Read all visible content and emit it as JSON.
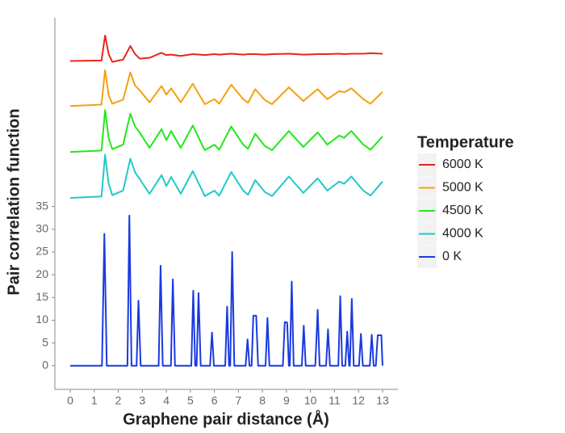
{
  "chart_data": {
    "type": "line",
    "xlabel": "Graphene pair distance (Å)",
    "ylabel": "Pair correlation function",
    "legend_title": "Temperature",
    "legend_position": "right",
    "xlim": [
      -0.64,
      13.64
    ],
    "ylim": [
      -5.2,
      76.5
    ],
    "xticks": [
      0,
      1,
      2,
      3,
      4,
      5,
      6,
      7,
      8,
      9,
      10,
      11,
      12,
      13
    ],
    "yticks": [
      0,
      5,
      10,
      15,
      20,
      25,
      30,
      35
    ],
    "series": [
      {
        "name": "6000 K",
        "color": "#e8261a",
        "x": [
          0,
          1.3,
          1.45,
          1.6,
          1.75,
          2.2,
          2.5,
          2.7,
          2.9,
          3.3,
          3.8,
          4.0,
          4.2,
          4.6,
          5.1,
          5.6,
          6.0,
          6.2,
          6.7,
          7.2,
          7.4,
          7.7,
          8.1,
          8.4,
          9.1,
          9.7,
          10.3,
          10.7,
          11.2,
          11.4,
          11.7,
          12.2,
          12.5,
          13
        ],
        "values": [
          67,
          67.1,
          72.6,
          68.5,
          66.8,
          67.3,
          70.3,
          68.5,
          67.5,
          67.7,
          68.8,
          68.3,
          68.4,
          68.1,
          68.5,
          68.3,
          68.5,
          68.4,
          68.6,
          68.4,
          68.5,
          68.5,
          68.4,
          68.5,
          68.6,
          68.4,
          68.5,
          68.5,
          68.6,
          68.5,
          68.6,
          68.6,
          68.7,
          68.6
        ]
      },
      {
        "name": "5000 K",
        "color": "#f5a010",
        "x": [
          0,
          1.3,
          1.45,
          1.6,
          1.75,
          2.2,
          2.5,
          2.7,
          2.9,
          3.3,
          3.8,
          4.0,
          4.2,
          4.6,
          5.1,
          5.6,
          6.0,
          6.2,
          6.7,
          7.2,
          7.4,
          7.7,
          8.1,
          8.4,
          9.1,
          9.7,
          10.3,
          10.7,
          11.2,
          11.4,
          11.7,
          12.2,
          12.5,
          13
        ],
        "values": [
          57.1,
          57.4,
          65,
          59.5,
          57.6,
          58.5,
          64.5,
          61.6,
          60.5,
          57.9,
          61.5,
          59.6,
          61,
          57.9,
          62,
          57.5,
          58.6,
          57.6,
          61.8,
          58.6,
          57.8,
          60.8,
          58.4,
          57.5,
          61.2,
          58.2,
          60.8,
          58.6,
          60.4,
          60.1,
          61,
          58.6,
          57.6,
          60.2
        ]
      },
      {
        "name": "4500 K",
        "color": "#22e81a",
        "x": [
          0,
          1.3,
          1.45,
          1.6,
          1.75,
          2.2,
          2.5,
          2.7,
          2.9,
          3.3,
          3.8,
          4.0,
          4.2,
          4.6,
          5.1,
          5.6,
          6.0,
          6.2,
          6.7,
          7.2,
          7.4,
          7.7,
          8.1,
          8.4,
          9.1,
          9.7,
          10.3,
          10.7,
          11.2,
          11.4,
          11.7,
          12.2,
          12.5,
          13
        ],
        "values": [
          47,
          47.3,
          56.2,
          50,
          47.6,
          48.6,
          55.4,
          52.6,
          51.2,
          47.9,
          52,
          49.6,
          51.6,
          47.9,
          52.8,
          47.4,
          48.6,
          47.5,
          52.6,
          48.6,
          47.7,
          51,
          48.3,
          47.4,
          51.6,
          48.1,
          51.3,
          48.6,
          50.6,
          50.1,
          51.6,
          48.6,
          47.5,
          50.4
        ]
      },
      {
        "name": "4000 K",
        "color": "#22c8c8",
        "x": [
          0,
          1.3,
          1.45,
          1.6,
          1.75,
          2.2,
          2.5,
          2.7,
          2.9,
          3.3,
          3.8,
          4.0,
          4.2,
          4.6,
          5.1,
          5.6,
          6.0,
          6.2,
          6.7,
          7.2,
          7.4,
          7.7,
          8.1,
          8.4,
          9.1,
          9.7,
          10.3,
          10.7,
          11.2,
          11.4,
          11.7,
          12.2,
          12.5,
          13
        ],
        "values": [
          36.9,
          37.2,
          46.4,
          40,
          37.5,
          38.5,
          45.5,
          42.5,
          41,
          37.8,
          41.9,
          39.5,
          41.5,
          37.8,
          42.8,
          37.3,
          38.5,
          37.4,
          42.6,
          38.5,
          37.6,
          40.8,
          38.2,
          37.3,
          41.6,
          38,
          41.2,
          38.5,
          40.5,
          40,
          41.6,
          38.5,
          37.4,
          40.5
        ]
      },
      {
        "name": "0 K",
        "color": "#1a3ae0",
        "x": [
          0,
          1.32,
          1.42,
          1.52,
          2.38,
          2.46,
          2.55,
          2.76,
          2.84,
          2.93,
          3.68,
          3.76,
          3.85,
          4.19,
          4.27,
          4.36,
          5.04,
          5.12,
          5.2,
          5.26,
          5.34,
          5.43,
          5.82,
          5.9,
          5.98,
          6.45,
          6.53,
          6.61,
          6.66,
          6.74,
          6.83,
          7.3,
          7.38,
          7.46,
          7.55,
          7.62,
          7.74,
          7.82,
          8.13,
          8.21,
          8.29,
          8.85,
          8.93,
          9.03,
          9.1,
          9.14,
          9.22,
          9.3,
          9.64,
          9.72,
          9.8,
          10.2,
          10.3,
          10.38,
          10.65,
          10.73,
          10.81,
          11.16,
          11.24,
          11.32,
          11.45,
          11.53,
          11.61,
          11.64,
          11.72,
          11.8,
          12.02,
          12.1,
          12.18,
          12.47,
          12.55,
          12.63,
          12.72,
          12.8,
          12.95,
          13
        ],
        "values": [
          0,
          0,
          29,
          0,
          0,
          33,
          0,
          0,
          14.3,
          0,
          0,
          22,
          0,
          0,
          19,
          0,
          0,
          16.5,
          0,
          0,
          16,
          0,
          0,
          7.3,
          0,
          0,
          13,
          0,
          0,
          25,
          0,
          0,
          5.8,
          0,
          0,
          11,
          11,
          0,
          0,
          10.5,
          0,
          0,
          9.6,
          9.5,
          0,
          0,
          18.5,
          0,
          0,
          8.8,
          0,
          0,
          12.3,
          0,
          0,
          8,
          0,
          0,
          15.3,
          0,
          0,
          7.5,
          0,
          0,
          14.7,
          0,
          0,
          7,
          0,
          0,
          6.8,
          0,
          0,
          6.7,
          6.7,
          0
        ]
      }
    ]
  }
}
